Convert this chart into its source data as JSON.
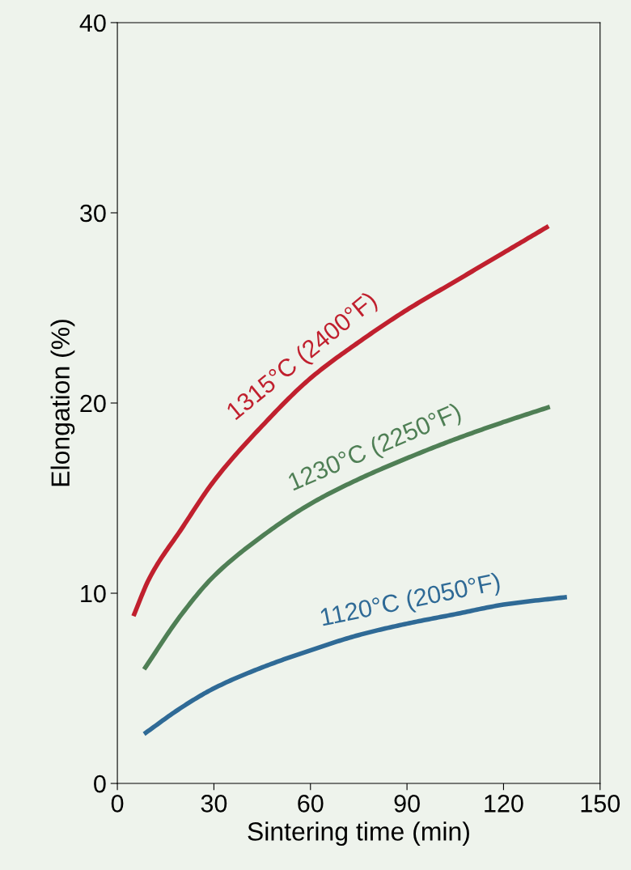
{
  "chart_data": {
    "type": "line",
    "xlabel": "Sintering time (min)",
    "ylabel": "Elongation (%)",
    "xlim": [
      0,
      150
    ],
    "xticks": [
      0,
      30,
      60,
      90,
      120,
      150
    ],
    "ylim": [
      0,
      40
    ],
    "yticks": [
      0,
      10,
      20,
      30,
      40
    ],
    "line_style": "solid",
    "series": [
      {
        "color": "#c0202e",
        "x": [
          5,
          10,
          20,
          30,
          45,
          60,
          75,
          90,
          105,
          120,
          134
        ],
        "values": [
          8.8,
          10.8,
          13.4,
          15.9,
          18.8,
          21.3,
          23.2,
          24.9,
          26.4,
          27.9,
          29.3
        ]
      },
      {
        "color": "#4f7f55",
        "x": [
          8.3,
          20,
          30,
          45,
          60,
          75,
          90,
          105,
          120,
          134.4
        ],
        "values": [
          6.0,
          8.9,
          10.9,
          13.0,
          14.7,
          16.0,
          17.1,
          18.1,
          19.0,
          19.8
        ]
      },
      {
        "color": "#2f6a96",
        "x": [
          8.3,
          20,
          30,
          45,
          60,
          75,
          90,
          105,
          120,
          139.7
        ],
        "values": [
          2.6,
          4.0,
          5.0,
          6.1,
          7.0,
          7.8,
          8.4,
          8.9,
          9.4,
          9.8
        ]
      }
    ],
    "annotations": [
      "1315°C (2400°F)",
      "1230°C (2250°F)",
      "1120°C (2050°F)"
    ]
  }
}
